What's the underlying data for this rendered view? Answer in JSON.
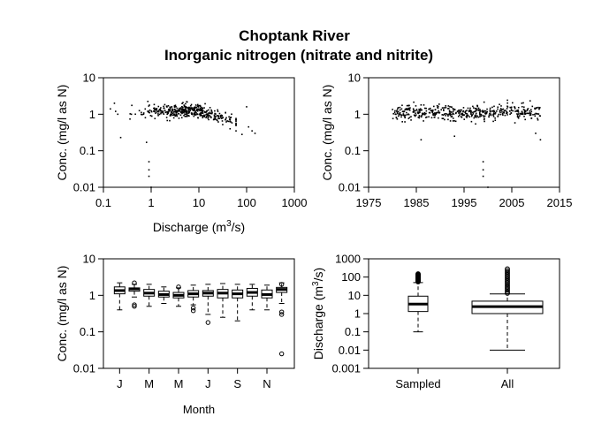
{
  "title_line1": "Choptank River",
  "title_line2": "Inorganic nitrogen (nitrate and nitrite)",
  "chart_data": [
    {
      "type": "scatter",
      "panel": "conc-vs-discharge",
      "xlabel": "Discharge (m",
      "xlabel_sup": "3",
      "xlabel_tail": "/s)",
      "ylabel": "Conc. (mg/l as N)",
      "xscale": "log",
      "yscale": "log",
      "xlim": [
        0.1,
        1000
      ],
      "ylim": [
        0.01,
        10
      ],
      "xticks": [
        "0.1",
        "1",
        "10",
        "100",
        "1000"
      ],
      "yticks": [
        "0.01",
        "0.1",
        "1",
        "10"
      ],
      "cloud": {
        "x_range": [
          0.3,
          60
        ],
        "y_center": 1.2,
        "n": 420
      },
      "points": [
        {
          "x": 0.14,
          "y": 1.4
        },
        {
          "x": 0.17,
          "y": 2.0
        },
        {
          "x": 0.18,
          "y": 1.2
        },
        {
          "x": 0.2,
          "y": 1.0
        },
        {
          "x": 0.23,
          "y": 0.23
        },
        {
          "x": 0.8,
          "y": 0.17
        },
        {
          "x": 0.9,
          "y": 0.05
        },
        {
          "x": 0.9,
          "y": 0.03
        },
        {
          "x": 0.9,
          "y": 0.02
        },
        {
          "x": 1.0,
          "y": 0.01
        },
        {
          "x": 100,
          "y": 1.6
        },
        {
          "x": 110,
          "y": 0.45
        },
        {
          "x": 130,
          "y": 0.35
        },
        {
          "x": 150,
          "y": 0.3
        },
        {
          "x": 80,
          "y": 0.28
        },
        {
          "x": 60,
          "y": 0.35
        },
        {
          "x": 45,
          "y": 0.4
        }
      ]
    },
    {
      "type": "scatter",
      "panel": "conc-vs-year",
      "ylabel": "Conc. (mg/l as N)",
      "xscale": "linear",
      "yscale": "log",
      "xlim": [
        1975,
        2015
      ],
      "ylim": [
        0.01,
        10
      ],
      "xticks": [
        "1975",
        "1985",
        "1995",
        "2005",
        "2015"
      ],
      "yticks": [
        "0.01",
        "0.1",
        "1",
        "10"
      ],
      "cloud": {
        "x_range": [
          1980,
          2011
        ],
        "y_center": 1.1,
        "n": 480
      },
      "points": [
        {
          "x": 1986,
          "y": 0.2
        },
        {
          "x": 1993,
          "y": 0.25
        },
        {
          "x": 1999,
          "y": 0.05
        },
        {
          "x": 1999,
          "y": 0.03
        },
        {
          "x": 1999,
          "y": 0.02
        },
        {
          "x": 2000,
          "y": 0.01
        },
        {
          "x": 2011,
          "y": 0.2
        },
        {
          "x": 2010,
          "y": 0.3
        }
      ]
    },
    {
      "type": "box",
      "panel": "conc-by-month",
      "xlabel": "Month",
      "ylabel": "Conc. (mg/l as N)",
      "yscale": "log",
      "ylim": [
        0.01,
        10
      ],
      "yticks": [
        "0.01",
        "0.1",
        "1",
        "10"
      ],
      "xticks": [
        {
          "label": "J",
          "index": 1
        },
        {
          "label": "M",
          "index": 3
        },
        {
          "label": "M",
          "index": 5
        },
        {
          "label": "J",
          "index": 7
        },
        {
          "label": "S",
          "index": 9
        },
        {
          "label": "N",
          "index": 11
        }
      ],
      "boxes": [
        {
          "min": 0.4,
          "q1": 1.1,
          "med": 1.35,
          "q3": 1.7,
          "max": 2.2,
          "out": []
        },
        {
          "min": 0.9,
          "q1": 1.3,
          "med": 1.5,
          "q3": 1.6,
          "max": 2.0,
          "out": [
            0.55,
            0.5,
            2.2
          ]
        },
        {
          "min": 0.5,
          "q1": 0.95,
          "med": 1.15,
          "q3": 1.45,
          "max": 2.0,
          "out": []
        },
        {
          "min": 0.6,
          "q1": 0.9,
          "med": 1.05,
          "q3": 1.3,
          "max": 1.7,
          "out": []
        },
        {
          "min": 0.5,
          "q1": 0.85,
          "med": 1.0,
          "q3": 1.2,
          "max": 1.6,
          "out": [
            1.7
          ]
        },
        {
          "min": 0.55,
          "q1": 0.9,
          "med": 1.1,
          "q3": 1.35,
          "max": 1.9,
          "out": [
            0.45,
            0.38
          ]
        },
        {
          "min": 0.3,
          "q1": 0.95,
          "med": 1.15,
          "q3": 1.35,
          "max": 2.0,
          "out": [
            0.18
          ]
        },
        {
          "min": 0.25,
          "q1": 0.85,
          "med": 1.15,
          "q3": 1.45,
          "max": 2.1,
          "out": []
        },
        {
          "min": 0.2,
          "q1": 0.85,
          "med": 1.1,
          "q3": 1.4,
          "max": 2.0,
          "out": []
        },
        {
          "min": 0.4,
          "q1": 0.95,
          "med": 1.2,
          "q3": 1.55,
          "max": 2.0,
          "out": []
        },
        {
          "min": 0.4,
          "q1": 0.85,
          "med": 1.05,
          "q3": 1.4,
          "max": 1.9,
          "out": []
        },
        {
          "min": 0.6,
          "q1": 1.2,
          "med": 1.45,
          "q3": 1.65,
          "max": 2.2,
          "out": [
            0.35,
            0.3,
            0.025,
            2.0
          ]
        }
      ]
    },
    {
      "type": "box",
      "panel": "discharge-sampled-vs-all",
      "ylabel": "Discharge (m",
      "ylabel_sup": "3",
      "ylabel_tail": "/s)",
      "yscale": "log",
      "ylim": [
        0.001,
        1000
      ],
      "yticks": [
        "0.001",
        "0.01",
        "0.1",
        "1",
        "10",
        "100",
        "1000"
      ],
      "categories": [
        "Sampled",
        "All"
      ],
      "boxes": [
        {
          "min": 0.1,
          "q1": 1.3,
          "med": 3.3,
          "q3": 9.0,
          "max": 50,
          "out_from": 55,
          "out_to": 150
        },
        {
          "min": 0.01,
          "q1": 1.0,
          "med": 2.4,
          "q3": 4.8,
          "max": 12,
          "out_from": 13,
          "out_to": 280
        }
      ]
    }
  ]
}
